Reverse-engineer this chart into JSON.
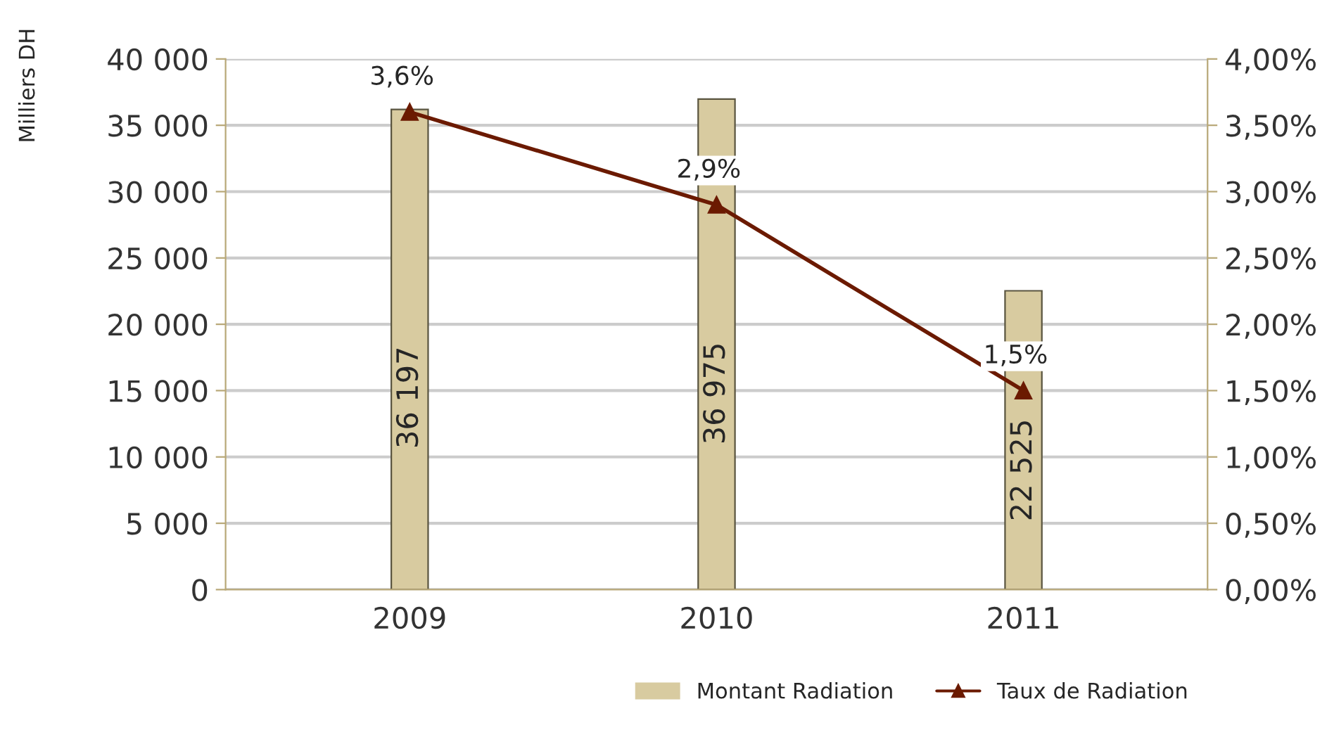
{
  "chart_data": {
    "type": "bar",
    "ylabel": "Milliers DH",
    "categories": [
      "2009",
      "2010",
      "2011"
    ],
    "series": [
      {
        "name": "Montant Radiation",
        "color": "#d8cba0",
        "values": [
          36197,
          36975,
          22525
        ],
        "value_labels": [
          "36 197",
          "36 975",
          "22 525"
        ]
      },
      {
        "name": "Taux de Radiation",
        "type": "line",
        "axis": "y2",
        "color": "#6b1a00",
        "marker": "triangle",
        "values": [
          3.6,
          2.9,
          1.5
        ],
        "value_labels": [
          "3,6%",
          "2,9%",
          "1,5%"
        ]
      }
    ],
    "ylim": [
      0,
      40000
    ],
    "yticks": [
      {
        "value": 0,
        "label": "0"
      },
      {
        "value": 5000,
        "label": "5 000"
      },
      {
        "value": 10000,
        "label": "10 000"
      },
      {
        "value": 15000,
        "label": "15 000"
      },
      {
        "value": 20000,
        "label": "20 000"
      },
      {
        "value": 25000,
        "label": "25 000"
      },
      {
        "value": 30000,
        "label": "30 000"
      },
      {
        "value": 35000,
        "label": "35 000"
      },
      {
        "value": 40000,
        "label": "40 000"
      }
    ],
    "y2lim": [
      0,
      4
    ],
    "y2ticks": [
      {
        "value": 0,
        "label": "0,00%"
      },
      {
        "value": 0.5,
        "label": "0,50%"
      },
      {
        "value": 1,
        "label": "1,00%"
      },
      {
        "value": 1.5,
        "label": "1,50%"
      },
      {
        "value": 2,
        "label": "2,00%"
      },
      {
        "value": 2.5,
        "label": "2,50%"
      },
      {
        "value": 3,
        "label": "3,00%"
      },
      {
        "value": 3.5,
        "label": "3,50%"
      },
      {
        "value": 4,
        "label": "4,00%"
      }
    ],
    "grid": "y",
    "legend": "bottom right"
  }
}
